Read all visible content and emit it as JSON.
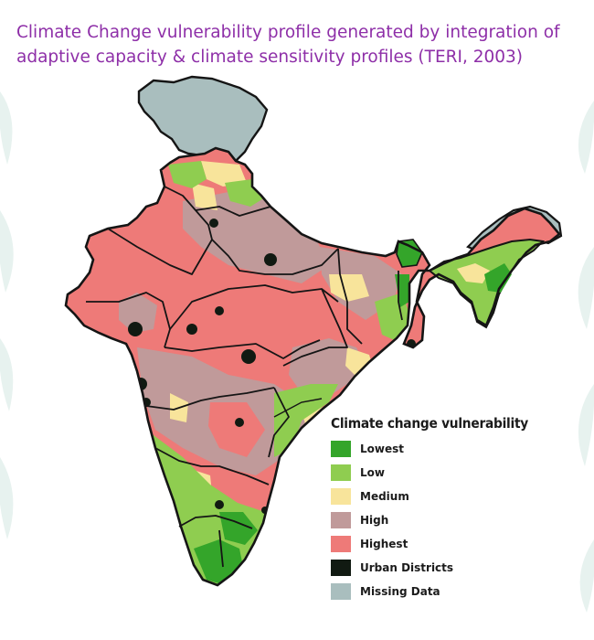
{
  "title": {
    "line1": "Climate Change vulnerability profile generated by integration of",
    "line2": "adaptive capacity & climate sensitivity profiles (TERI, 2003)"
  },
  "legend": {
    "title": "Climate change vulnerability",
    "items": [
      {
        "label": "Lowest",
        "color": "#34a52a"
      },
      {
        "label": "Low",
        "color": "#8fcd50"
      },
      {
        "label": "Medium",
        "color": "#f8e49b"
      },
      {
        "label": "High",
        "color": "#c09a9a"
      },
      {
        "label": "Highest",
        "color": "#ee7a78"
      },
      {
        "label": "Urban Districts",
        "color": "#111a12"
      },
      {
        "label": "Missing Data",
        "color": "#a9bebe"
      }
    ]
  },
  "colors": {
    "title": "#8e2fa8",
    "border": "#151515",
    "background_pattern": "#e4f1ee"
  }
}
